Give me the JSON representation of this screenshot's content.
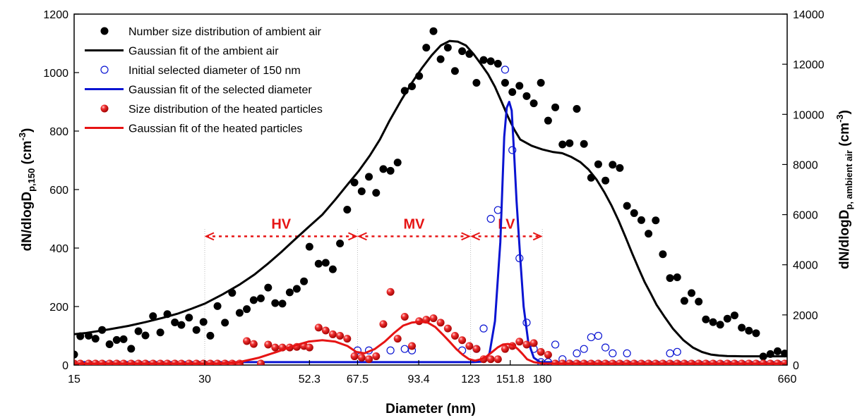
{
  "chart_data": {
    "type": "scatter",
    "xlabel": "Diameter (nm)",
    "ylabel_left": {
      "main": "dN/dlogD",
      "sub": "p,150",
      "unit": " (cm",
      "sup": "-3",
      "close": ")"
    },
    "ylabel_right": {
      "main": "dN/dlogD",
      "sub": "p, ambient air",
      "unit": " (cm",
      "sup": "-3",
      "close": ")"
    },
    "x_scale": "log",
    "xlim": [
      15,
      660
    ],
    "x_ticks": [
      15,
      30,
      52.3,
      67.5,
      93.4,
      123,
      151.8,
      180,
      660
    ],
    "x_tick_labels": [
      "15",
      "30",
      "52.3",
      "67.5",
      "93.4",
      "123",
      "151.8",
      "180",
      "660"
    ],
    "ylim_left": [
      0,
      1200
    ],
    "y_ticks_left": [
      0,
      200,
      400,
      600,
      800,
      1000,
      1200
    ],
    "ylim_right": [
      0,
      14000
    ],
    "y_ticks_right": [
      0,
      2000,
      4000,
      6000,
      8000,
      10000,
      12000,
      14000
    ],
    "grid": false,
    "legend_position": "top-left",
    "colors": {
      "ambient": "#000000",
      "selected": "#0a14d2",
      "heated": "#e61414",
      "range": "#e61414"
    },
    "ranges": [
      {
        "label": "HV",
        "from": 30,
        "to": 67.5
      },
      {
        "label": "MV",
        "from": 67.5,
        "to": 123
      },
      {
        "label": "LV",
        "from": 123,
        "to": 180
      }
    ],
    "range_y": 440,
    "series": [
      {
        "name": "Number size distribution of ambient air",
        "kind": "scatter",
        "marker": "filled-circle",
        "axis": "right",
        "x": [
          15.0,
          15.5,
          16.2,
          16.8,
          17.4,
          18.1,
          18.8,
          19.5,
          20.3,
          21.1,
          21.9,
          22.8,
          23.7,
          24.6,
          25.6,
          26.5,
          27.6,
          28.7,
          29.8,
          30.9,
          32.1,
          33.4,
          34.7,
          36.1,
          37.5,
          38.9,
          40.4,
          42.0,
          43.6,
          45.3,
          47.1,
          48.9,
          50.8,
          52.3,
          54.9,
          57.0,
          59.2,
          61.5,
          63.9,
          66.4,
          69.0,
          71.7,
          74.5,
          77.4,
          80.4,
          83.5,
          86.7,
          90.1,
          93.6,
          97.2,
          101.0,
          104.9,
          109.0,
          113.2,
          117.6,
          122.2,
          126.9,
          131.8,
          136.9,
          142.2,
          147.7,
          153.5,
          159.4,
          165.6,
          172.0,
          178.6,
          185.6,
          192.8,
          200.3,
          208.0,
          216.1,
          224.5,
          233.2,
          242.2,
          251.6,
          261.4,
          271.5,
          282.1,
          293.0,
          304.4,
          316.2,
          328.5,
          341.2,
          354.4,
          368.2,
          382.5,
          397.3,
          412.7,
          428.7,
          445.4,
          462.6,
          480.6,
          499.2,
          518.6,
          538.7,
          559.6,
          581.3,
          603.8,
          627.3,
          651.6
        ],
        "y": [
          420,
          1150,
          1170,
          1050,
          1400,
          830,
          1000,
          1030,
          650,
          1350,
          1180,
          1950,
          1300,
          2030,
          1700,
          1600,
          1890,
          1400,
          1720,
          1170,
          2350,
          1690,
          2880,
          2080,
          2230,
          2590,
          2660,
          3090,
          2470,
          2450,
          2900,
          3040,
          3340,
          4720,
          4040,
          4080,
          3820,
          4850,
          6200,
          7280,
          6930,
          7510,
          6870,
          7820,
          7750,
          8080,
          10940,
          11120,
          11530,
          12660,
          13320,
          12200,
          12660,
          11730,
          12520,
          12410,
          11260,
          12170,
          12120,
          12020,
          11260,
          10890,
          11140,
          10730,
          10440,
          11260,
          9750,
          10280,
          8800,
          8850,
          10220,
          8820,
          7470,
          8010,
          7360,
          7990,
          7860,
          6350,
          6060,
          5780,
          5240,
          5770,
          4420,
          3470,
          3500,
          2560,
          2870,
          2530,
          1820,
          1710,
          1610,
          1850,
          1980,
          1490,
          1370,
          1270,
          340,
          440,
          550,
          460
        ]
      },
      {
        "name": "Gaussian fit of the ambient air",
        "kind": "line",
        "axis": "right",
        "x": [
          15,
          16,
          18,
          20,
          22,
          24,
          26,
          28,
          30,
          33,
          36,
          39,
          42,
          45,
          48,
          52,
          56,
          60,
          64,
          68,
          72,
          76,
          80,
          85,
          90,
          95,
          100,
          105,
          110,
          115,
          120,
          125,
          130,
          135,
          140,
          145,
          150,
          155,
          160,
          170,
          180,
          190,
          200,
          210,
          220,
          230,
          240,
          250,
          260,
          270,
          280,
          290,
          300,
          310,
          320,
          330,
          345,
          360,
          380,
          400,
          420,
          440,
          460,
          480,
          500,
          520,
          540,
          570,
          600,
          630,
          660
        ],
        "y": [
          1230,
          1280,
          1420,
          1560,
          1720,
          1880,
          2050,
          2250,
          2450,
          2820,
          3200,
          3600,
          4050,
          4500,
          4950,
          5500,
          6000,
          6600,
          7200,
          7750,
          8350,
          9000,
          9750,
          10550,
          11250,
          11850,
          12350,
          12750,
          12930,
          12900,
          12750,
          12400,
          12000,
          11600,
          11100,
          10500,
          9900,
          9400,
          9000,
          8750,
          8600,
          8500,
          8450,
          8300,
          8100,
          7800,
          7400,
          6900,
          6350,
          5750,
          5100,
          4450,
          3850,
          3300,
          2850,
          2400,
          1900,
          1450,
          1000,
          700,
          520,
          420,
          380,
          360,
          355,
          350,
          350,
          350,
          350,
          350,
          350
        ]
      },
      {
        "name": "Initial selected diameter of 150 nm",
        "kind": "scatter",
        "marker": "open-circle",
        "axis": "left",
        "x": [
          67.5,
          71.7,
          80.4,
          86.7,
          90.1,
          117.6,
          126.9,
          131.8,
          136.9,
          142.2,
          147.7,
          153.5,
          159.4,
          165.6,
          172.0,
          178.6,
          185.6,
          192.8,
          200.3,
          208.0,
          216.1,
          224.5,
          233.2,
          242.2,
          251.6,
          261.4,
          282.1,
          354.4,
          368.2
        ],
        "y": [
          50,
          50,
          50,
          55,
          50,
          50,
          55,
          125,
          500,
          530,
          1010,
          735,
          365,
          145,
          55,
          10,
          10,
          70,
          20,
          5,
          40,
          55,
          95,
          100,
          60,
          40,
          40,
          40,
          45
        ]
      },
      {
        "name": "Gaussian fit of the selected diameter",
        "kind": "line",
        "axis": "left",
        "x": [
          15,
          110,
          125,
          132,
          136,
          140,
          144,
          147,
          149,
          151,
          153,
          155,
          157,
          160,
          163,
          167,
          172,
          178,
          185,
          660
        ],
        "y": [
          10,
          10,
          10,
          12,
          40,
          150,
          420,
          780,
          880,
          900,
          870,
          720,
          560,
          370,
          200,
          80,
          25,
          10,
          10,
          10
        ]
      },
      {
        "name": "Size distribution of the heated particles",
        "kind": "scatter",
        "marker": "red-ball",
        "axis": "left",
        "x": [
          15.0,
          15.5,
          16.2,
          16.8,
          17.4,
          18.1,
          18.8,
          19.5,
          20.3,
          21.1,
          21.9,
          22.8,
          23.7,
          24.6,
          25.6,
          26.5,
          27.6,
          28.7,
          29.8,
          30.9,
          32.1,
          33.4,
          34.7,
          36.1,
          37.5,
          38.9,
          40.4,
          42.0,
          43.6,
          45.3,
          47.1,
          48.9,
          50.8,
          52.3,
          54.9,
          57.0,
          59.2,
          61.5,
          63.9,
          66.4,
          69.0,
          71.7,
          74.5,
          77.4,
          80.4,
          83.5,
          86.7,
          90.1,
          93.6,
          97.2,
          101.0,
          104.9,
          109.0,
          113.2,
          117.6,
          122.2,
          126.9,
          131.8,
          136.9,
          142.2,
          147.7,
          153.5,
          159.4,
          165.6,
          172.0,
          178.6,
          185.6,
          192.8,
          200.3,
          208.0,
          216.1,
          224.5,
          233.2,
          242.2,
          251.6,
          261.4,
          271.5,
          282.1,
          293.0,
          304.4,
          316.2,
          328.5,
          341.2,
          354.4,
          368.2,
          382.5,
          397.3,
          412.7,
          428.7,
          445.4,
          462.6,
          480.6,
          499.2,
          518.6,
          538.7,
          559.6,
          581.3,
          603.8,
          627.3,
          651.6
        ],
        "y": [
          5,
          5,
          5,
          5,
          5,
          5,
          5,
          5,
          5,
          5,
          5,
          5,
          5,
          5,
          5,
          5,
          5,
          5,
          5,
          5,
          5,
          5,
          5,
          5,
          82,
          72,
          5,
          70,
          60,
          60,
          60,
          62,
          65,
          60,
          128,
          118,
          105,
          100,
          90,
          30,
          25,
          20,
          30,
          140,
          250,
          90,
          165,
          65,
          150,
          155,
          160,
          145,
          125,
          100,
          85,
          65,
          55,
          20,
          20,
          20,
          55,
          65,
          80,
          70,
          75,
          45,
          35,
          5,
          5,
          5,
          5,
          5,
          5,
          5,
          5,
          5,
          5,
          5,
          5,
          5,
          5,
          5,
          5,
          5,
          5,
          5,
          5,
          5,
          5,
          5,
          5,
          5,
          5,
          5,
          5,
          5,
          5,
          5,
          5,
          5
        ]
      },
      {
        "name": "Gaussian fit of the heated particles",
        "kind": "line",
        "axis": "left",
        "x": [
          15,
          32,
          36,
          40,
          44,
          48,
          52,
          56,
          60,
          64,
          67,
          70,
          74,
          78,
          82,
          86,
          90,
          94,
          98,
          102,
          106,
          110,
          114,
          118,
          122,
          126,
          130,
          134,
          138,
          142,
          146,
          150,
          154,
          158,
          162,
          166,
          172,
          180,
          660
        ],
        "y": [
          5,
          5,
          10,
          25,
          45,
          65,
          80,
          85,
          80,
          65,
          45,
          40,
          55,
          80,
          110,
          135,
          145,
          148,
          145,
          130,
          105,
          80,
          55,
          35,
          20,
          15,
          20,
          30,
          45,
          60,
          70,
          72,
          68,
          55,
          38,
          20,
          10,
          5,
          5
        ]
      }
    ]
  }
}
